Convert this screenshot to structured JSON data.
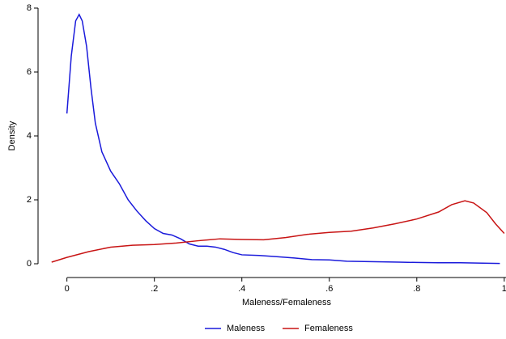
{
  "chart_data": {
    "type": "line",
    "x_label": "Maleness/Femaleness",
    "y_label": "Density",
    "xlim": [
      -0.066,
      1.004
    ],
    "ylim": [
      0,
      8
    ],
    "xticks": [
      0,
      {
        "value": 0.2,
        "label": ".2"
      },
      {
        "value": 0.4,
        "label": ".4"
      },
      {
        "value": 0.6,
        "label": ".6"
      },
      {
        "value": 0.8,
        "label": ".8"
      },
      1
    ],
    "yticks": [
      0,
      2,
      4,
      6,
      8
    ],
    "grid": false,
    "legend": "bottom",
    "series": [
      {
        "name": "Maleness",
        "color": "#1a1adb",
        "x": [
          0,
          0.01,
          0.02,
          0.028,
          0.035,
          0.045,
          0.055,
          0.065,
          0.08,
          0.1,
          0.12,
          0.14,
          0.16,
          0.18,
          0.2,
          0.22,
          0.24,
          0.26,
          0.28,
          0.3,
          0.32,
          0.34,
          0.36,
          0.38,
          0.4,
          0.44,
          0.48,
          0.52,
          0.56,
          0.6,
          0.64,
          0.68,
          0.72,
          0.76,
          0.8,
          0.85,
          0.9,
          0.95,
          0.99
        ],
        "values": [
          4.7,
          6.5,
          7.6,
          7.8,
          7.6,
          6.8,
          5.5,
          4.4,
          3.5,
          2.9,
          2.5,
          2.0,
          1.65,
          1.35,
          1.1,
          0.95,
          0.9,
          0.78,
          0.62,
          0.55,
          0.55,
          0.52,
          0.45,
          0.35,
          0.28,
          0.26,
          0.22,
          0.18,
          0.13,
          0.12,
          0.08,
          0.07,
          0.06,
          0.05,
          0.04,
          0.03,
          0.03,
          0.02,
          0.01
        ]
      },
      {
        "name": "Femaleness",
        "color": "#c81414",
        "x": [
          -0.035,
          0,
          0.05,
          0.1,
          0.15,
          0.2,
          0.25,
          0.3,
          0.35,
          0.4,
          0.45,
          0.5,
          0.55,
          0.6,
          0.65,
          0.7,
          0.75,
          0.8,
          0.85,
          0.88,
          0.91,
          0.93,
          0.96,
          0.98,
          1.0
        ],
        "values": [
          0.05,
          0.2,
          0.38,
          0.52,
          0.58,
          0.6,
          0.65,
          0.72,
          0.78,
          0.76,
          0.75,
          0.82,
          0.92,
          0.98,
          1.02,
          1.12,
          1.25,
          1.4,
          1.62,
          1.85,
          1.97,
          1.9,
          1.6,
          1.25,
          0.95
        ]
      }
    ]
  }
}
